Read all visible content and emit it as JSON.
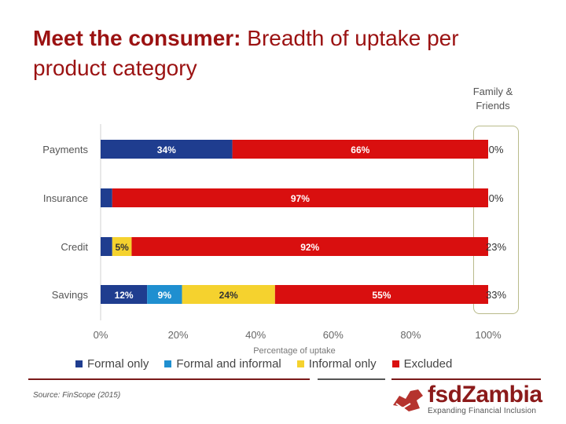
{
  "header": {
    "title_bold": "Meet the consumer:",
    "title_rest": "Breadth of uptake per product category"
  },
  "family_friends": {
    "label": "Family & Friends",
    "values": [
      "0%",
      "0%",
      "23%",
      "33%"
    ]
  },
  "chart_data": {
    "type": "bar",
    "orientation": "horizontal",
    "stacked": true,
    "categories": [
      "Payments",
      "Insurance",
      "Credit",
      "Savings"
    ],
    "series": [
      {
        "name": "Formal only",
        "color": "#1f3d8f",
        "values": [
          34,
          3,
          3,
          12
        ],
        "labels": [
          "34%",
          "",
          "",
          "12%"
        ]
      },
      {
        "name": "Formal and informal",
        "color": "#1f8fd0",
        "values": [
          0,
          0,
          0,
          9
        ],
        "labels": [
          "",
          "",
          "",
          "9%"
        ]
      },
      {
        "name": "Informal only",
        "color": "#f5d22e",
        "values": [
          0,
          0,
          5,
          24
        ],
        "labels": [
          "",
          "",
          "5%",
          "24%"
        ]
      },
      {
        "name": "Excluded",
        "color": "#d90f0f",
        "values": [
          66,
          97,
          92,
          55
        ],
        "labels": [
          "66%",
          "97%",
          "92%",
          "55%"
        ]
      }
    ],
    "xlim": [
      0,
      100
    ],
    "xticks": [
      "0%",
      "20%",
      "40%",
      "60%",
      "80%",
      "100%"
    ],
    "xlabel": "Percentage of uptake",
    "legend_position": "bottom"
  },
  "footer": {
    "source": "Source: FinScope (2015)",
    "logo_text": "fsdZambia",
    "logo_tagline": "Expanding Financial Inclusion"
  }
}
